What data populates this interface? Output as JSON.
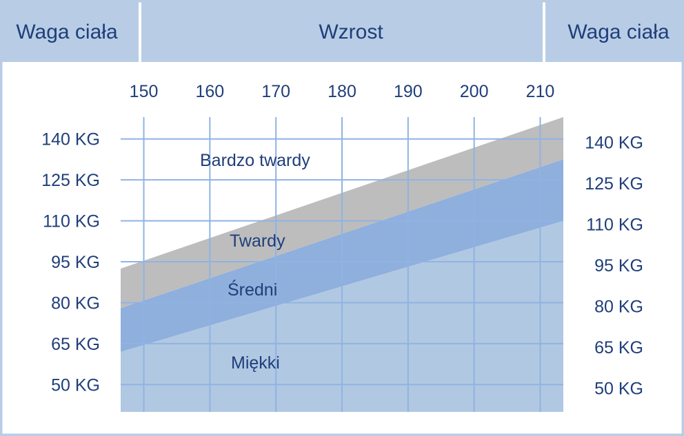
{
  "header": {
    "left_label": "Waga ciała",
    "center_label": "Wzrost",
    "right_label": "Waga ciała"
  },
  "colors": {
    "header_bg": "#b8cde5",
    "frame": "#b8cde5",
    "plot_bg": "#ffffff",
    "grid": "#8fb3e3",
    "zone_bardzo_twardy": "#bdbdbd",
    "zone_twardy": "#94b1d8",
    "zone_sredni": "#8fafdd",
    "zone_miekki": "#b1c8e2",
    "text": "#1f3e7a"
  },
  "chart_data": {
    "type": "area",
    "title": "",
    "xlabel": "Wzrost",
    "ylabel": "Waga ciała",
    "x_ticks": [
      "150",
      "160",
      "170",
      "180",
      "190",
      "200",
      "210"
    ],
    "x_values": [
      150,
      160,
      170,
      180,
      190,
      200,
      210
    ],
    "y_ticks_left": [
      "140 KG",
      "125 KG",
      "110 KG",
      "95 KG",
      "80 KG",
      "65 KG",
      "50 KG"
    ],
    "y_ticks_right": [
      "140 KG",
      "125 KG",
      "110 KG",
      "95 KG",
      "80 KG",
      "65 KG",
      "50 KG"
    ],
    "y_values": [
      140,
      125,
      110,
      95,
      80,
      65,
      50
    ],
    "xlim": [
      146.5,
      213.5
    ],
    "ylim": [
      40,
      148
    ],
    "grid": true,
    "zones": [
      {
        "name": "Bardzo twardy"
      },
      {
        "name": "Twardy"
      },
      {
        "name": "Średni"
      },
      {
        "name": "Miękki"
      }
    ],
    "boundaries": {
      "upper": [
        [
          146.5,
          92.5
        ],
        [
          213.5,
          148
        ]
      ],
      "twardy_sredni": [
        [
          146.5,
          78
        ],
        [
          213.5,
          132.5
        ]
      ],
      "sredni_miekki": [
        [
          146.5,
          62
        ],
        [
          213.5,
          110
        ]
      ]
    }
  }
}
